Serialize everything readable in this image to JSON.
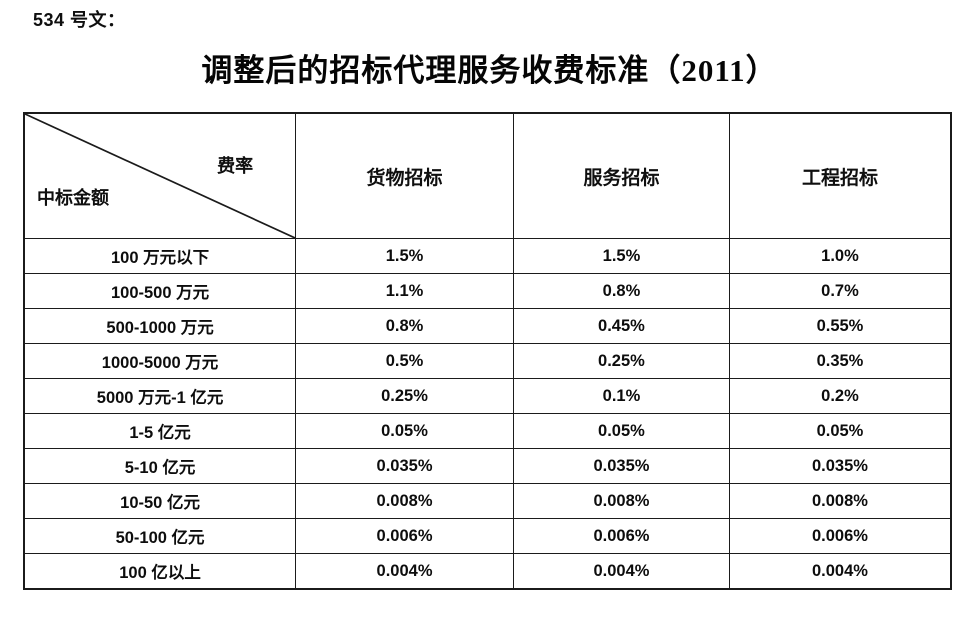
{
  "page": {
    "doc_label": "534 号文：",
    "title": "调整后的招标代理服务收费标准（2011）"
  },
  "table": {
    "corner": {
      "top_right": "费率",
      "bottom_left": "中标金额"
    },
    "columns": [
      "货物招标",
      "服务招标",
      "工程招标"
    ],
    "rows": [
      {
        "label": "100 万元以下",
        "values": [
          "1.5%",
          "1.5%",
          "1.0%"
        ]
      },
      {
        "label": "100-500 万元",
        "values": [
          "1.1%",
          "0.8%",
          "0.7%"
        ]
      },
      {
        "label": "500-1000 万元",
        "values": [
          "0.8%",
          "0.45%",
          "0.55%"
        ]
      },
      {
        "label": "1000-5000 万元",
        "values": [
          "0.5%",
          "0.25%",
          "0.35%"
        ]
      },
      {
        "label": "5000 万元-1 亿元",
        "values": [
          "0.25%",
          "0.1%",
          "0.2%"
        ]
      },
      {
        "label": "1-5 亿元",
        "values": [
          "0.05%",
          "0.05%",
          "0.05%"
        ]
      },
      {
        "label": "5-10 亿元",
        "values": [
          "0.035%",
          "0.035%",
          "0.035%"
        ]
      },
      {
        "label": "10-50 亿元",
        "values": [
          "0.008%",
          "0.008%",
          "0.008%"
        ]
      },
      {
        "label": "50-100 亿元",
        "values": [
          "0.006%",
          "0.006%",
          "0.006%"
        ]
      },
      {
        "label": "100 亿以上",
        "values": [
          "0.004%",
          "0.004%",
          "0.004%"
        ]
      }
    ],
    "border_color": "#1b1b1b",
    "text_color": "#0d0d0d"
  }
}
